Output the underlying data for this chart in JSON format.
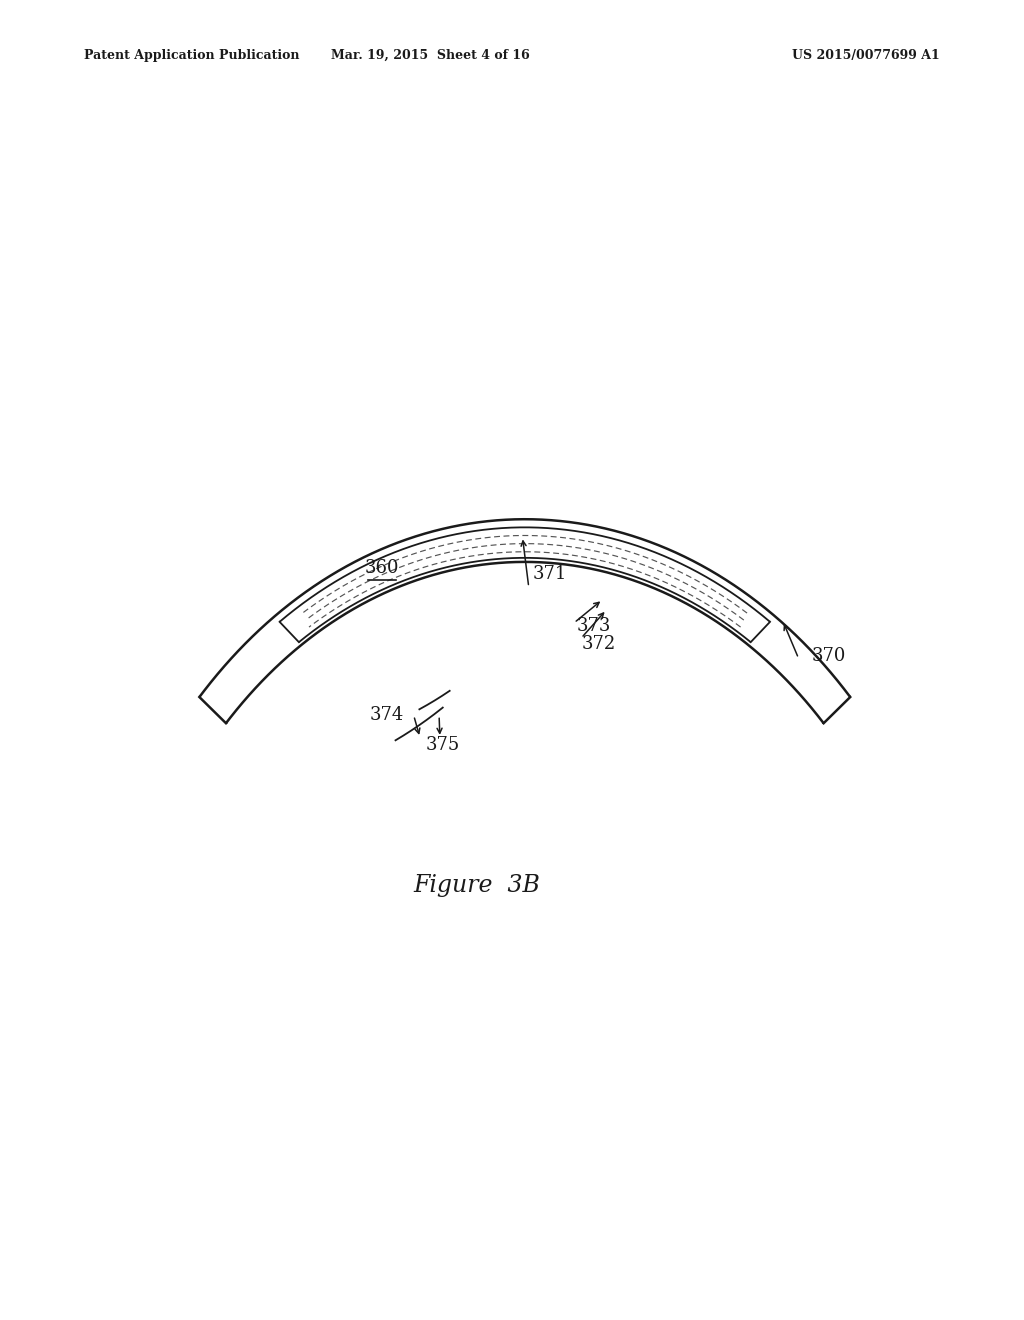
{
  "bg_color": "#ffffff",
  "header_left": "Patent Application Publication",
  "header_mid": "Mar. 19, 2015  Sheet 4 of 16",
  "header_right": "US 2015/0077699 A1",
  "figure_label": "Figure  3B",
  "color_main": "#1a1a1a",
  "color_thin": "#555555",
  "lw_main": 1.8,
  "lw_thin": 1.3,
  "lw_dashed": 0.9,
  "font_size_label": 13,
  "font_size_fig": 17,
  "font_size_header": 9
}
